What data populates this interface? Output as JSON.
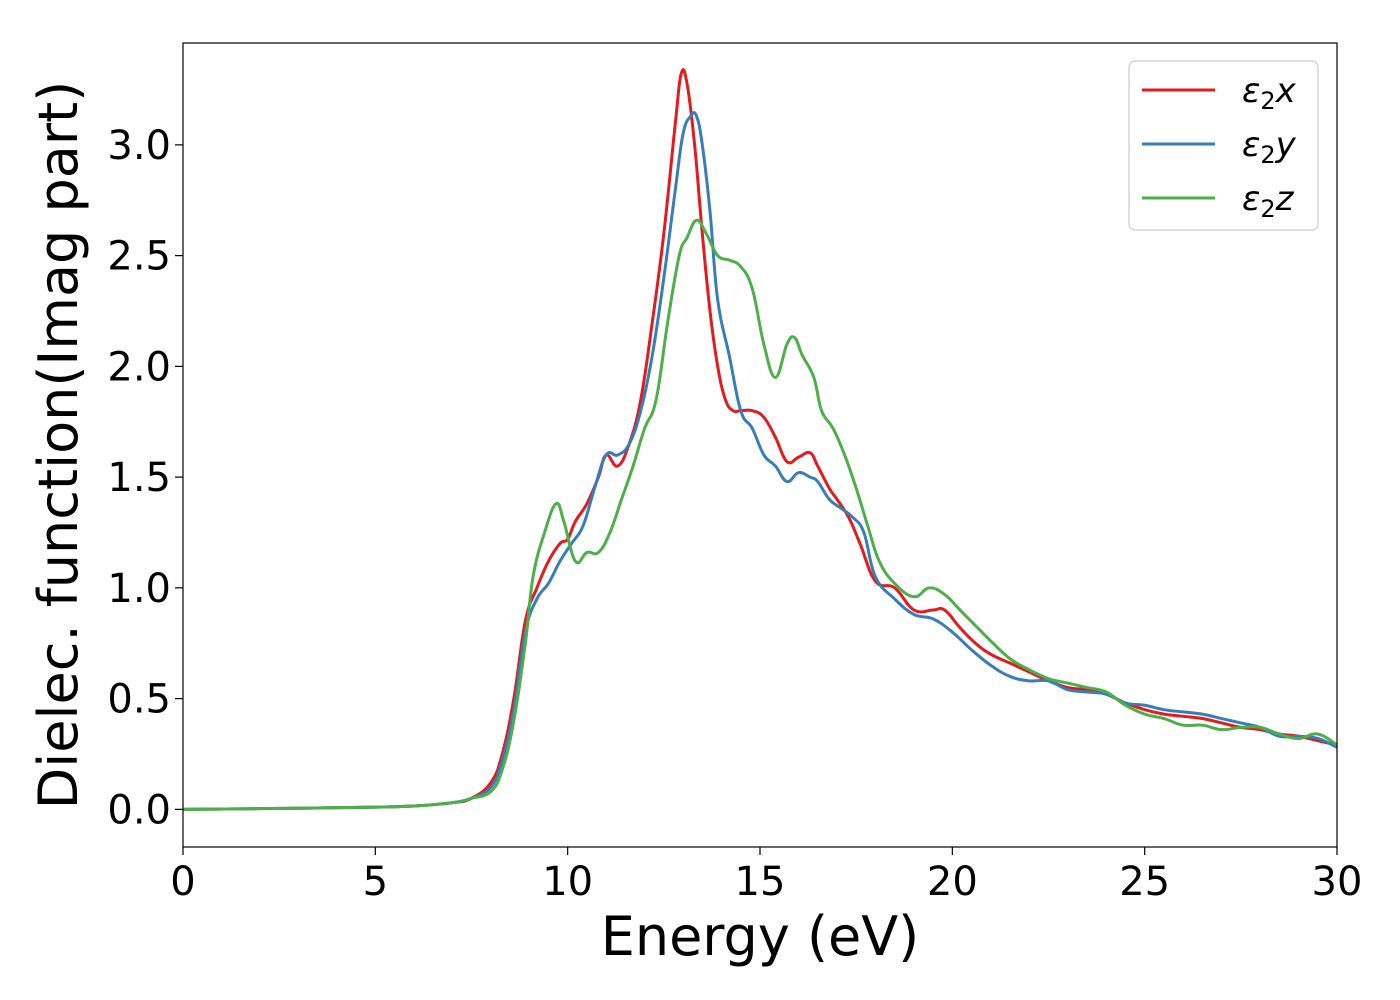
{
  "chart_data": {
    "type": "line",
    "xlabel": "Energy (eV)",
    "ylabel": "Dielec. function(Imag part)",
    "xlim": [
      0,
      30
    ],
    "ylim": [
      -0.17,
      3.46
    ],
    "xticks": [
      0,
      5,
      10,
      15,
      20,
      25,
      30
    ],
    "xtick_labels": [
      "0",
      "5",
      "10",
      "15",
      "20",
      "25",
      "30"
    ],
    "yticks": [
      0.0,
      0.5,
      1.0,
      1.5,
      2.0,
      2.5,
      3.0
    ],
    "ytick_labels": [
      "0.0",
      "0.5",
      "1.0",
      "1.5",
      "2.0",
      "2.5",
      "3.0"
    ],
    "grid": false,
    "legend_position": "top-right",
    "series": [
      {
        "name": "ε2x",
        "legend_base": "ε",
        "legend_sub": "2",
        "legend_var": "x",
        "color": "#e41a1c",
        "x": [
          0,
          3,
          5,
          6,
          7,
          7.5,
          8,
          8.3,
          8.6,
          8.9,
          9.2,
          9.5,
          9.8,
          10.0,
          10.2,
          10.5,
          10.8,
          11.0,
          11.3,
          11.6,
          11.9,
          12.2,
          12.5,
          12.8,
          12.95,
          13.1,
          13.3,
          13.5,
          13.7,
          13.9,
          14.1,
          14.3,
          14.5,
          14.8,
          15.1,
          15.4,
          15.7,
          16.0,
          16.3,
          16.5,
          16.8,
          17.0,
          17.3,
          17.6,
          18.0,
          18.5,
          19.0,
          19.5,
          19.8,
          20.2,
          20.6,
          21.0,
          21.5,
          22.0,
          22.5,
          23.0,
          23.5,
          24.0,
          24.5,
          25.0,
          25.5,
          26.0,
          26.5,
          27.0,
          27.5,
          28.0,
          28.5,
          29.0,
          29.5,
          30.0
        ],
        "values": [
          0.0,
          0.005,
          0.01,
          0.015,
          0.03,
          0.05,
          0.12,
          0.25,
          0.5,
          0.85,
          1.0,
          1.12,
          1.2,
          1.22,
          1.3,
          1.38,
          1.5,
          1.6,
          1.55,
          1.65,
          1.85,
          2.2,
          2.6,
          3.1,
          3.32,
          3.28,
          3.0,
          2.6,
          2.25,
          2.0,
          1.85,
          1.8,
          1.8,
          1.8,
          1.77,
          1.68,
          1.57,
          1.59,
          1.61,
          1.55,
          1.45,
          1.4,
          1.32,
          1.2,
          1.03,
          1.0,
          0.9,
          0.9,
          0.9,
          0.82,
          0.75,
          0.7,
          0.66,
          0.62,
          0.58,
          0.55,
          0.54,
          0.52,
          0.48,
          0.45,
          0.43,
          0.42,
          0.41,
          0.39,
          0.37,
          0.36,
          0.34,
          0.33,
          0.31,
          0.29
        ]
      },
      {
        "name": "ε2y",
        "legend_base": "ε",
        "legend_sub": "2",
        "legend_var": "y",
        "color": "#377eb8",
        "x": [
          0,
          3,
          5,
          6,
          7,
          7.5,
          8,
          8.3,
          8.6,
          8.9,
          9.2,
          9.5,
          9.8,
          10.1,
          10.4,
          10.7,
          11.0,
          11.3,
          11.6,
          11.9,
          12.2,
          12.5,
          12.8,
          13.0,
          13.2,
          13.35,
          13.5,
          13.7,
          13.9,
          14.2,
          14.5,
          14.8,
          15.1,
          15.4,
          15.7,
          16.0,
          16.3,
          16.5,
          16.8,
          17.1,
          17.4,
          17.7,
          18.0,
          18.5,
          19.0,
          19.5,
          20.0,
          20.5,
          21.0,
          21.5,
          22.0,
          22.5,
          23.0,
          23.5,
          24.0,
          24.5,
          25.0,
          25.5,
          26.0,
          26.5,
          27.0,
          27.5,
          28.0,
          28.5,
          29.0,
          29.5,
          30.0
        ],
        "values": [
          0.0,
          0.005,
          0.01,
          0.015,
          0.03,
          0.05,
          0.1,
          0.22,
          0.45,
          0.8,
          0.95,
          1.02,
          1.12,
          1.2,
          1.28,
          1.45,
          1.6,
          1.6,
          1.65,
          1.8,
          2.05,
          2.4,
          2.8,
          3.05,
          3.13,
          3.13,
          3.0,
          2.7,
          2.3,
          2.05,
          1.8,
          1.72,
          1.6,
          1.55,
          1.48,
          1.52,
          1.5,
          1.48,
          1.4,
          1.36,
          1.32,
          1.25,
          1.05,
          0.95,
          0.88,
          0.86,
          0.8,
          0.72,
          0.65,
          0.6,
          0.58,
          0.58,
          0.54,
          0.53,
          0.52,
          0.48,
          0.47,
          0.45,
          0.44,
          0.43,
          0.41,
          0.39,
          0.37,
          0.33,
          0.33,
          0.32,
          0.28
        ]
      },
      {
        "name": "ε2z",
        "legend_base": "ε",
        "legend_sub": "2",
        "legend_var": "z",
        "color": "#4daf4a",
        "x": [
          0,
          3,
          5,
          6,
          7,
          7.5,
          8,
          8.3,
          8.6,
          8.9,
          9.1,
          9.4,
          9.7,
          9.9,
          10.2,
          10.5,
          10.8,
          11.1,
          11.4,
          11.7,
          12.0,
          12.3,
          12.6,
          12.9,
          13.1,
          13.35,
          13.6,
          13.9,
          14.2,
          14.5,
          14.8,
          15.1,
          15.4,
          15.7,
          15.9,
          16.1,
          16.4,
          16.6,
          16.9,
          17.2,
          17.5,
          17.8,
          18.1,
          18.5,
          19.0,
          19.4,
          19.8,
          20.2,
          20.6,
          21.0,
          21.5,
          22.0,
          22.5,
          23.0,
          23.5,
          24.0,
          24.5,
          25.0,
          25.5,
          26.0,
          26.5,
          27.0,
          27.5,
          28.0,
          28.5,
          29.0,
          29.5,
          30.0
        ],
        "values": [
          0.0,
          0.005,
          0.01,
          0.015,
          0.03,
          0.05,
          0.08,
          0.18,
          0.4,
          0.75,
          1.05,
          1.25,
          1.38,
          1.3,
          1.12,
          1.16,
          1.16,
          1.25,
          1.4,
          1.55,
          1.72,
          1.85,
          2.2,
          2.5,
          2.58,
          2.66,
          2.6,
          2.5,
          2.48,
          2.45,
          2.35,
          2.1,
          1.95,
          2.1,
          2.13,
          2.05,
          1.95,
          1.8,
          1.72,
          1.6,
          1.45,
          1.28,
          1.12,
          1.02,
          0.96,
          1.0,
          0.97,
          0.9,
          0.83,
          0.76,
          0.68,
          0.63,
          0.59,
          0.57,
          0.55,
          0.53,
          0.47,
          0.43,
          0.41,
          0.38,
          0.38,
          0.36,
          0.37,
          0.37,
          0.34,
          0.32,
          0.34,
          0.29
        ]
      }
    ]
  }
}
